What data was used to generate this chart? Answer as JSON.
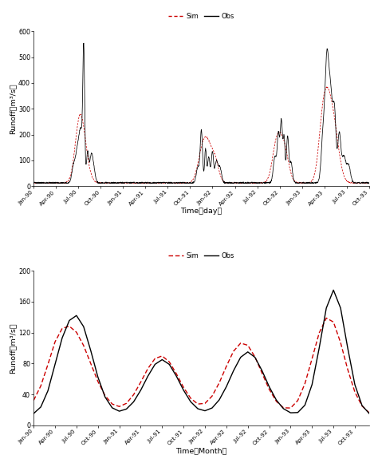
{
  "daily_ylim": [
    0,
    600
  ],
  "daily_yticks": [
    0,
    100,
    200,
    300,
    400,
    500,
    600
  ],
  "monthly_ylim": [
    0,
    200
  ],
  "monthly_yticks": [
    0,
    40,
    80,
    120,
    160,
    200
  ],
  "xlabel_day": "Time（day）",
  "xlabel_month": "Time（Month）",
  "ylabel": "Runoff（m³/s）",
  "sim_color": "#cc0000",
  "obs_color": "#000000",
  "background": "#ffffff",
  "legend_sim": "Sim",
  "legend_obs": "Obs",
  "x_tick_labels": [
    "Jan-90",
    "Apr-90",
    "Jul-90",
    "Oct-90",
    "Jan-91",
    "Apr-91",
    "Jul-91",
    "Oct-91",
    "Jan-92",
    "Apr-92",
    "Jul-92",
    "Oct-92",
    "Jan-93",
    "Apr-93",
    "Jul-93",
    "Oct-93"
  ],
  "n_ticks": 16
}
